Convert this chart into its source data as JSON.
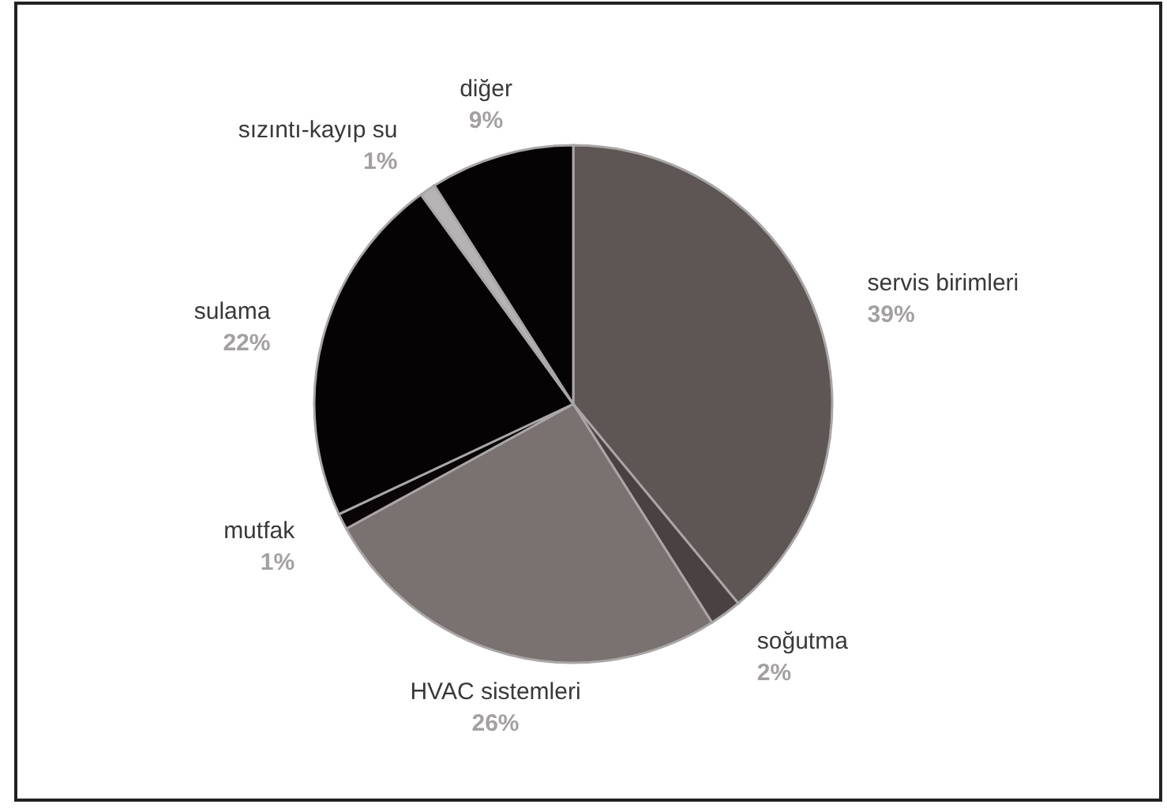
{
  "chart_data": {
    "type": "pie",
    "categories": [
      "servis birimleri",
      "soğutma",
      "HVAC sistemleri",
      "mutfak",
      "sulama",
      "sızıntı-kayıp su",
      "diğer"
    ],
    "values": [
      39,
      2,
      26,
      1,
      22,
      1,
      9
    ],
    "colors": [
      "#5e5654",
      "#4a4242",
      "#7a7270",
      "#0a0608",
      "#050304",
      "#b5b3b3",
      "#050304"
    ],
    "value_labels": [
      "39%",
      "2%",
      "26%",
      "1%",
      "22%",
      "1%",
      "9%"
    ]
  }
}
